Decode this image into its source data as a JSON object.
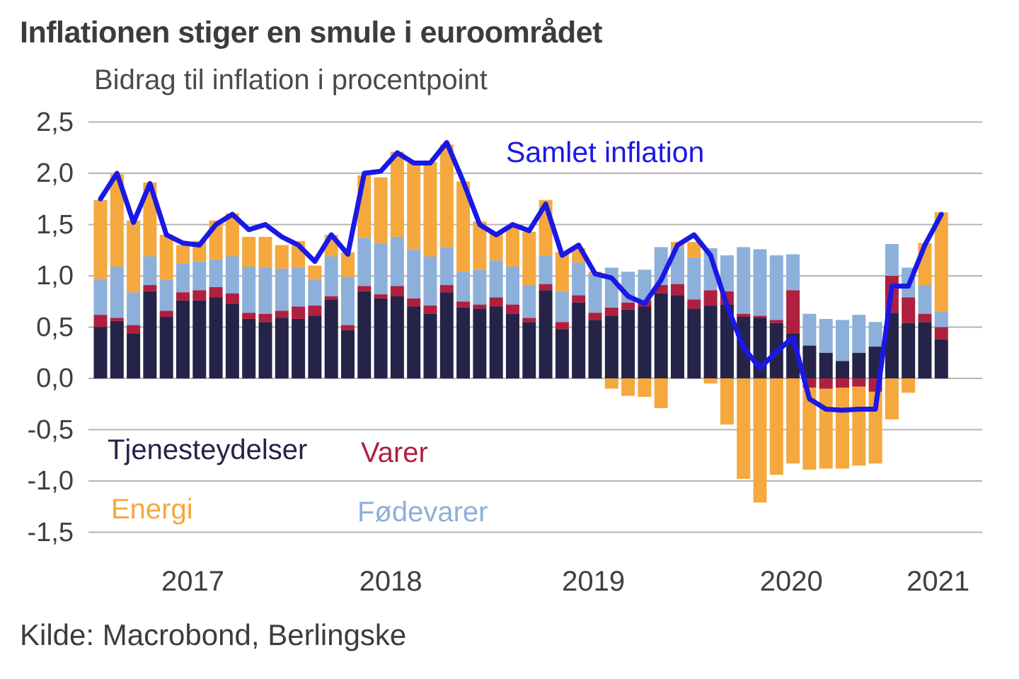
{
  "header": {
    "title": "Inflationen stiger en smule i euroområdet",
    "subtitle": "Bidrag til inflation i procentpoint"
  },
  "source": "Kilde: Macrobond, Berlingske",
  "palette": {
    "text": "#3C3C3C",
    "grid": "#B4B4B4",
    "background": "#FFFFFF"
  },
  "chart_data": {
    "type": "stacked-bar+line",
    "title": "Inflationen stiger en smule i euroområdet",
    "subtitle": "Bidrag til inflation i procentpoint",
    "x_start": "2017-01",
    "x_interval": "month",
    "n_points": 52,
    "ylim": [
      -1.5,
      2.5
    ],
    "grid": true,
    "y_ticks": [
      {
        "label": "2,5",
        "value": 2.5
      },
      {
        "label": "2,0",
        "value": 2.0
      },
      {
        "label": "1,5",
        "value": 1.5
      },
      {
        "label": "1,0",
        "value": 1.0
      },
      {
        "label": "0,5",
        "value": 0.5
      },
      {
        "label": "0,0",
        "value": 0.0
      },
      {
        "label": "-0,5",
        "value": -0.5
      },
      {
        "label": "-1,0",
        "value": -1.0
      },
      {
        "label": "-1,5",
        "value": -1.5
      }
    ],
    "x_ticks": [
      {
        "label": "2017",
        "month_index": 5.6
      },
      {
        "label": "2018",
        "month_index": 17.6
      },
      {
        "label": "2019",
        "month_index": 29.9
      },
      {
        "label": "2020",
        "month_index": 41.9
      },
      {
        "label": "2021",
        "month_index": 50.8
      }
    ],
    "series": [
      {
        "name": "Tjenesteydelser",
        "color": "#262349",
        "values": [
          0.5,
          0.56,
          0.44,
          0.85,
          0.6,
          0.76,
          0.76,
          0.79,
          0.73,
          0.58,
          0.55,
          0.59,
          0.58,
          0.61,
          0.77,
          0.47,
          0.85,
          0.78,
          0.8,
          0.7,
          0.63,
          0.84,
          0.69,
          0.68,
          0.7,
          0.63,
          0.55,
          0.86,
          0.48,
          0.74,
          0.57,
          0.61,
          0.67,
          0.7,
          0.83,
          0.81,
          0.68,
          0.71,
          0.72,
          0.6,
          0.59,
          0.54,
          0.44,
          0.32,
          0.25,
          0.17,
          0.25,
          0.31,
          0.64,
          0.54,
          0.55,
          0.38
        ]
      },
      {
        "name": "Varer",
        "color": "#AF1F3F",
        "values": [
          0.12,
          0.03,
          0.08,
          0.06,
          0.06,
          0.08,
          0.1,
          0.1,
          0.1,
          0.06,
          0.08,
          0.07,
          0.12,
          0.1,
          0.03,
          0.05,
          0.05,
          0.04,
          0.1,
          0.08,
          0.08,
          0.07,
          0.06,
          0.04,
          0.09,
          0.09,
          0.04,
          0.06,
          0.07,
          0.07,
          0.07,
          0.08,
          0.07,
          0.06,
          0.08,
          0.11,
          0.09,
          0.15,
          0.13,
          0.03,
          0.02,
          0.03,
          0.42,
          -0.09,
          -0.1,
          -0.09,
          -0.08,
          -0.13,
          0.36,
          0.25,
          0.08,
          0.12
        ]
      },
      {
        "name": "Fødevarer",
        "color": "#8DB0DB",
        "values": [
          0.35,
          0.5,
          0.32,
          0.28,
          0.3,
          0.28,
          0.28,
          0.27,
          0.36,
          0.45,
          0.45,
          0.41,
          0.38,
          0.25,
          0.39,
          0.47,
          0.47,
          0.5,
          0.48,
          0.48,
          0.48,
          0.37,
          0.29,
          0.34,
          0.36,
          0.37,
          0.32,
          0.28,
          0.3,
          0.32,
          0.38,
          0.39,
          0.3,
          0.3,
          0.37,
          0.36,
          0.41,
          0.41,
          0.35,
          0.65,
          0.65,
          0.63,
          0.35,
          0.31,
          0.33,
          0.4,
          0.37,
          0.24,
          0.31,
          0.29,
          0.28,
          0.15
        ]
      },
      {
        "name": "Energi",
        "color": "#F5A83D",
        "values": [
          0.77,
          0.9,
          0.7,
          0.72,
          0.44,
          0.18,
          0.2,
          0.38,
          0.42,
          0.29,
          0.3,
          0.23,
          0.26,
          0.14,
          0.21,
          0.24,
          0.61,
          0.64,
          0.83,
          0.84,
          0.92,
          1.0,
          0.88,
          0.47,
          0.26,
          0.4,
          0.52,
          0.54,
          0.38,
          0.14,
          0.02,
          -0.1,
          -0.17,
          -0.18,
          -0.29,
          0.05,
          0.15,
          -0.05,
          -0.45,
          -0.98,
          -1.21,
          -0.94,
          -0.83,
          -0.8,
          -0.78,
          -0.79,
          -0.77,
          -0.7,
          -0.4,
          -0.14,
          0.41,
          0.97
        ]
      }
    ],
    "line": {
      "name": "Samlet inflation",
      "color": "#1A18E6",
      "values": [
        1.75,
        2.0,
        1.52,
        1.9,
        1.4,
        1.32,
        1.3,
        1.5,
        1.6,
        1.45,
        1.5,
        1.38,
        1.3,
        1.14,
        1.4,
        1.21,
        2.0,
        2.02,
        2.2,
        2.1,
        2.1,
        2.3,
        1.92,
        1.5,
        1.4,
        1.5,
        1.44,
        1.7,
        1.2,
        1.3,
        1.02,
        0.98,
        0.8,
        0.73,
        0.96,
        1.3,
        1.4,
        1.2,
        0.71,
        0.3,
        0.1,
        0.26,
        0.4,
        -0.2,
        -0.3,
        -0.31,
        -0.3,
        -0.3,
        0.9,
        0.9,
        1.3,
        1.6
      ]
    },
    "legend_position": "inside-plot"
  }
}
